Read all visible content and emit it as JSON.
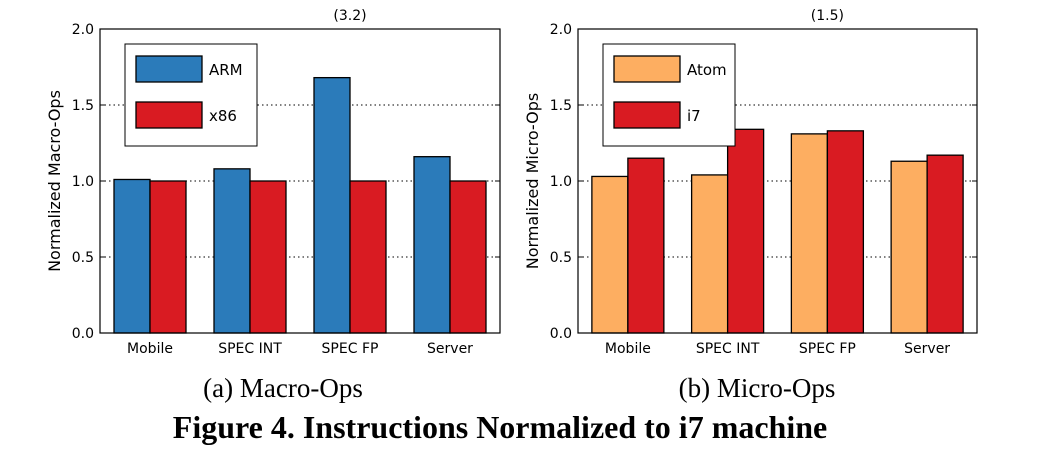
{
  "chart_data": [
    {
      "type": "bar",
      "title": "",
      "xlabel": "",
      "ylabel": "Normalized Macro-Ops",
      "ylim": [
        0,
        2.0
      ],
      "yticks": [
        "0.0",
        "0.5",
        "1.0",
        "1.5",
        "2.0"
      ],
      "grid": "dotted horizontal at major ticks",
      "legend_position": "top-left",
      "categories": [
        "Mobile",
        "SPEC INT",
        "SPEC FP",
        "Server"
      ],
      "series": [
        {
          "name": "ARM",
          "color": "#2b7bba",
          "values": [
            1.01,
            1.08,
            1.68,
            1.16
          ]
        },
        {
          "name": "x86",
          "color": "#d91b22",
          "values": [
            1.0,
            1.0,
            1.0,
            1.0
          ]
        }
      ],
      "annotations": [
        {
          "text": "(3.2)",
          "category": "SPEC FP"
        }
      ],
      "subtitle": "(a) Macro-Ops"
    },
    {
      "type": "bar",
      "title": "",
      "xlabel": "",
      "ylabel": "Normalized Micro-Ops",
      "ylim": [
        0,
        2.0
      ],
      "yticks": [
        "0.0",
        "0.5",
        "1.0",
        "1.5",
        "2.0"
      ],
      "grid": "dotted horizontal at major ticks",
      "legend_position": "top-left",
      "categories": [
        "Mobile",
        "SPEC INT",
        "SPEC FP",
        "Server"
      ],
      "series": [
        {
          "name": "Atom",
          "color": "#fdae61",
          "values": [
            1.03,
            1.04,
            1.31,
            1.13
          ]
        },
        {
          "name": "i7",
          "color": "#d91b22",
          "values": [
            1.15,
            1.34,
            1.33,
            1.17
          ]
        }
      ],
      "annotations": [
        {
          "text": "(1.5)",
          "category": "SPEC FP"
        }
      ],
      "subtitle": "(b) Micro-Ops"
    }
  ],
  "caption": "Figure 4. Instructions Normalized to i7 machine"
}
